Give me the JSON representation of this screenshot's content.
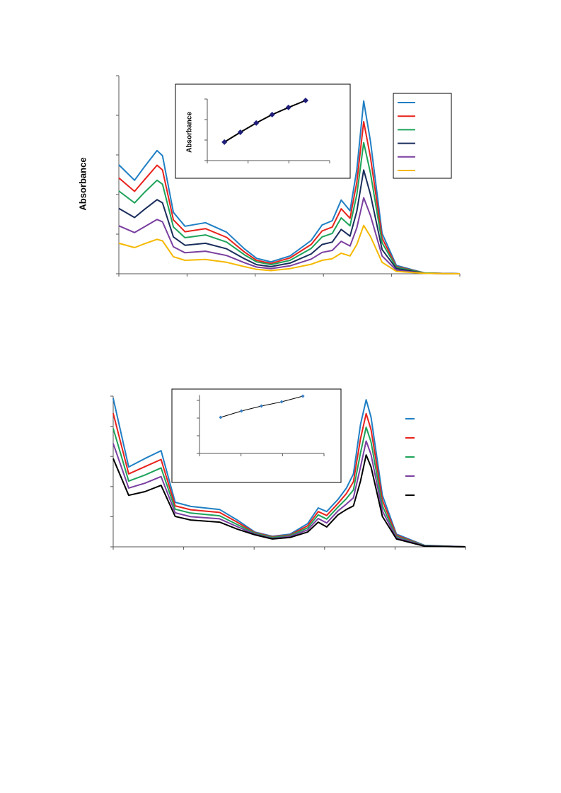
{
  "chart_data": [
    {
      "type": "line",
      "y_label": "Absorbance",
      "xlim": [
        0,
        5
      ],
      "ylim": [
        0,
        5
      ],
      "xticks": [
        0,
        1,
        2,
        3,
        4,
        5
      ],
      "yticks": [
        0,
        1,
        2,
        3,
        4,
        5
      ],
      "tick_labels": false,
      "legend": "upper right",
      "legend_box": true,
      "x": [
        0,
        0.23,
        0.38,
        0.56,
        0.64,
        0.8,
        0.97,
        1.27,
        1.58,
        1.84,
        2.02,
        2.23,
        2.51,
        2.82,
        2.98,
        3.13,
        3.26,
        3.39,
        3.49,
        3.59,
        3.69,
        3.86,
        4.07,
        4.48,
        5.0
      ],
      "series": [
        {
          "color": "#1f7fc4",
          "values": [
            2.75,
            2.36,
            2.71,
            3.11,
            2.98,
            1.55,
            1.2,
            1.29,
            1.05,
            0.63,
            0.39,
            0.3,
            0.45,
            0.84,
            1.23,
            1.34,
            1.86,
            1.59,
            2.63,
            4.36,
            3.34,
            1.02,
            0.21,
            0.02,
            0
          ]
        },
        {
          "color": "#e8221c",
          "values": [
            2.42,
            2.08,
            2.38,
            2.74,
            2.62,
            1.36,
            1.06,
            1.14,
            0.92,
            0.55,
            0.34,
            0.26,
            0.4,
            0.74,
            1.08,
            1.18,
            1.64,
            1.4,
            2.31,
            3.84,
            2.94,
            0.9,
            0.18,
            0.02,
            0
          ]
        },
        {
          "color": "#1ea35a",
          "values": [
            2.09,
            1.79,
            2.06,
            2.36,
            2.26,
            1.18,
            0.91,
            0.98,
            0.8,
            0.48,
            0.3,
            0.23,
            0.34,
            0.64,
            0.93,
            1.02,
            1.41,
            1.21,
            2.0,
            3.31,
            2.54,
            0.78,
            0.16,
            0.02,
            0
          ]
        },
        {
          "color": "#1a2d5c",
          "values": [
            1.65,
            1.42,
            1.63,
            1.87,
            1.79,
            0.93,
            0.72,
            0.77,
            0.63,
            0.38,
            0.23,
            0.18,
            0.27,
            0.5,
            0.74,
            0.8,
            1.12,
            0.95,
            1.58,
            2.62,
            2.0,
            0.61,
            0.13,
            0.01,
            0
          ]
        },
        {
          "color": "#7a3fa0",
          "values": [
            1.21,
            1.04,
            1.19,
            1.37,
            1.31,
            0.68,
            0.53,
            0.57,
            0.46,
            0.28,
            0.17,
            0.13,
            0.2,
            0.37,
            0.54,
            0.59,
            0.82,
            0.7,
            1.16,
            1.92,
            1.47,
            0.45,
            0.09,
            0.01,
            0
          ]
        },
        {
          "color": "#f5b800",
          "values": [
            0.77,
            0.66,
            0.76,
            0.87,
            0.83,
            0.43,
            0.34,
            0.36,
            0.29,
            0.18,
            0.11,
            0.08,
            0.13,
            0.24,
            0.34,
            0.38,
            0.52,
            0.45,
            0.74,
            1.22,
            0.94,
            0.29,
            0.06,
            0.01,
            0
          ]
        }
      ]
    },
    {
      "type": "line",
      "y_label": "Absorbance",
      "xlim": [
        0,
        3
      ],
      "ylim": [
        0,
        3
      ],
      "xticks": [
        0,
        1,
        2,
        3
      ],
      "yticks": [
        0,
        1,
        2,
        3
      ],
      "tick_labels": false,
      "markers": true,
      "x": [
        0.42,
        0.81,
        1.2,
        1.59,
        1.99,
        2.41
      ],
      "series": [
        {
          "color": "#000000",
          "marker_color": "#1f1f7a",
          "values": [
            0.9,
            1.38,
            1.83,
            2.24,
            2.59,
            2.93
          ]
        }
      ]
    },
    {
      "type": "line",
      "xlim": [
        0,
        5
      ],
      "ylim": [
        0,
        5
      ],
      "xticks": [
        0,
        1,
        2,
        3,
        4,
        5
      ],
      "yticks": [
        0,
        1,
        2,
        3,
        4,
        5
      ],
      "tick_labels": false,
      "legend": "right",
      "legend_box": false,
      "x": [
        0,
        0.22,
        0.45,
        0.68,
        0.88,
        1.1,
        1.51,
        1.76,
        2.01,
        2.26,
        2.51,
        2.76,
        2.91,
        3.03,
        3.19,
        3.31,
        3.41,
        3.51,
        3.59,
        3.66,
        3.82,
        4.02,
        4.42,
        5.0
      ],
      "series": [
        {
          "color": "#1f7fc4",
          "values": [
            4.93,
            2.65,
            2.93,
            3.19,
            1.48,
            1.34,
            1.24,
            0.89,
            0.49,
            0.35,
            0.42,
            0.77,
            1.29,
            1.17,
            1.57,
            1.95,
            2.42,
            4.06,
            4.88,
            4.3,
            1.71,
            0.42,
            0.05,
            0
          ]
        },
        {
          "color": "#e8221c",
          "values": [
            4.43,
            2.42,
            2.66,
            2.9,
            1.36,
            1.23,
            1.14,
            0.82,
            0.47,
            0.33,
            0.39,
            0.7,
            1.17,
            1.04,
            1.44,
            1.77,
            2.16,
            3.59,
            4.42,
            3.89,
            1.54,
            0.38,
            0.04,
            0
          ]
        },
        {
          "color": "#1ea35a",
          "values": [
            3.93,
            2.18,
            2.38,
            2.62,
            1.25,
            1.12,
            1.03,
            0.74,
            0.45,
            0.31,
            0.37,
            0.63,
            1.06,
            0.92,
            1.32,
            1.6,
            1.89,
            3.12,
            3.97,
            3.48,
            1.36,
            0.34,
            0.04,
            0
          ]
        },
        {
          "color": "#7a3fa0",
          "values": [
            3.43,
            1.95,
            2.11,
            2.33,
            1.13,
            1.0,
            0.93,
            0.67,
            0.42,
            0.28,
            0.34,
            0.56,
            0.94,
            0.79,
            1.19,
            1.42,
            1.63,
            2.65,
            3.51,
            3.06,
            1.19,
            0.3,
            0.03,
            0
          ]
        },
        {
          "color": "#000000",
          "values": [
            2.93,
            1.71,
            1.83,
            2.04,
            1.01,
            0.89,
            0.82,
            0.59,
            0.4,
            0.26,
            0.31,
            0.49,
            0.82,
            0.66,
            1.06,
            1.24,
            1.36,
            2.18,
            3.05,
            2.65,
            1.01,
            0.26,
            0.02,
            0
          ]
        }
      ]
    },
    {
      "type": "line",
      "xlim": [
        0,
        3
      ],
      "ylim": [
        0,
        3.3
      ],
      "xticks": [
        0,
        1,
        2,
        3
      ],
      "yticks": [
        0,
        1,
        2,
        3
      ],
      "tick_labels": false,
      "markers": true,
      "x": [
        0.51,
        1.01,
        1.49,
        1.98,
        2.49
      ],
      "series": [
        {
          "color": "#000000",
          "marker_color": "#3a7fc4",
          "values": [
            2.04,
            2.4,
            2.68,
            2.92,
            3.24
          ]
        }
      ]
    }
  ]
}
